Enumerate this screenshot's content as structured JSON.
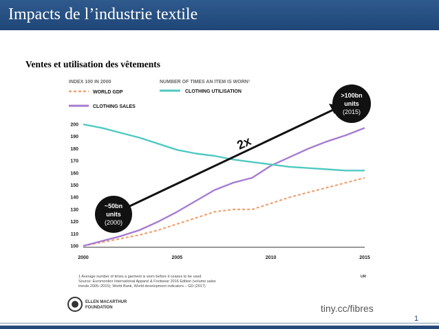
{
  "slide": {
    "title": "Impacts de l’industrie textile",
    "subtitle": "Ventes et utilisation des vêtements",
    "page_number": "1"
  },
  "chart_data": {
    "type": "line",
    "left_axis_header": "INDEX 100 IN 2000",
    "right_axis_header": "NUMBER OF TIMES AN ITEM IS WORN¹",
    "x": [
      2000,
      2001,
      2002,
      2003,
      2004,
      2005,
      2006,
      2007,
      2008,
      2009,
      2010,
      2011,
      2012,
      2013,
      2014,
      2015
    ],
    "x_ticks": [
      "2000",
      "2005",
      "2010",
      "2015"
    ],
    "y_ticks": [
      100,
      110,
      120,
      130,
      140,
      150,
      160,
      170,
      180,
      190,
      200
    ],
    "ylim": [
      100,
      200
    ],
    "series": [
      {
        "name": "WORLD GDP",
        "color": "#f0a070",
        "dash": true,
        "values": [
          100,
          103,
          106,
          109,
          113,
          118,
          123,
          128,
          130,
          130,
          135,
          140,
          144,
          148,
          152,
          156
        ]
      },
      {
        "name": "CLOTHING SALES",
        "color": "#a57bd2",
        "dash": false,
        "values": [
          100,
          104,
          108,
          113,
          120,
          128,
          137,
          146,
          152,
          156,
          166,
          173,
          180,
          186,
          191,
          197
        ]
      },
      {
        "name": "CLOTHING UTILISATION",
        "color": "#4ec9c1",
        "dash": false,
        "values": [
          200,
          197,
          193,
          189,
          184,
          179,
          176,
          174,
          171,
          169,
          167,
          165,
          164,
          163,
          162,
          162
        ]
      }
    ],
    "annotations": {
      "start_label": [
        "~50bn",
        "units",
        "(2000)"
      ],
      "end_label": [
        ">100bn",
        "units",
        "(2015)"
      ],
      "arrow_label": "2x",
      "axis_unit": "UR"
    },
    "footnote": [
      "1 Average number of times a garment is worn before it ceases to be used",
      "Source: Euromonitor International Apparel & Footwear 2016 Edition (volume sales",
      "trends 2005–2015); World Bank, World development indicators – GD (2017)"
    ],
    "logo_text": [
      "ELLEN MACARTHUR",
      "FOUNDATION"
    ],
    "link": "tiny.cc/fibres"
  },
  "colors": {
    "title_bar": "#1f4677",
    "gdp": "#f0a070",
    "sales": "#a57bd2",
    "utilisation": "#4ec9c1"
  }
}
